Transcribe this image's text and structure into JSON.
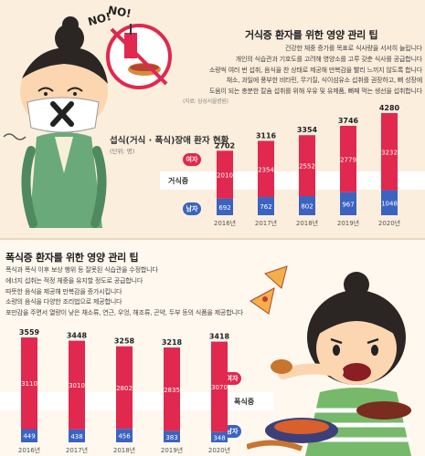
{
  "top": {
    "title": "거식증 환자를 위한 영양 관리 팁",
    "tips": [
      "건강한 체중 증가를 목표로 식사량을 서서히 늘립니다",
      "개인의 식습관과 기호도를 고려해 영양소를 고루 갖춘 식사를 공급합니다",
      "소량씩 여러 번 섭취, 음식을 찬 상태로 제공해 만복감을 빨리 느끼지 않도록 합니다",
      "채소, 과일에 풍부한 비타민, 무기질, 식이섬유소 섭취를 권장하고, 뼈 성장에",
      "도움이 되는 충분한 칼슘 섭취를 위해 우유 및 유제품, 뼈째 먹는 생선을 섭취합니다"
    ],
    "source": "(자료: 삼성서울병원)",
    "no_bubble_1": "NO!",
    "no_bubble_2": "NO!"
  },
  "bottom": {
    "title": "폭식증 환자를 위한 영양 관리 팁",
    "tips": [
      "폭식과 폭식 이후 보상 행위 등 잘못된 식습관을 수정합니다",
      "에너지 섭취는 적정 체중을 유지할 정도로 공급합니다",
      "따뜻한 음식을 제공해 만복감을 증가시킵니다",
      "소량의 음식을 다양한 조리법으로 제공합니다",
      "포만감을 주면서 열량이 낮은 채소류, 연근, 우엉, 해조류, 곤약, 두부 등의 식품을 제공합니다"
    ]
  },
  "chart_data": [
    {
      "type": "bar",
      "title": "섭식(거식 · 폭식)장애 환자 현황",
      "unit": "(단위: 명)",
      "categories": [
        "2016년",
        "2017년",
        "2018년",
        "2019년",
        "2020년"
      ],
      "totals": [
        2702,
        3116,
        3354,
        3746,
        4280
      ],
      "series": [
        {
          "name": "여자",
          "values": [
            2010,
            2354,
            2552,
            2779,
            3232
          ],
          "color": "#e1284e"
        },
        {
          "name": "남자",
          "values": [
            692,
            762,
            802,
            967,
            1048
          ],
          "color": "#3b63c1"
        }
      ],
      "band_label": "거식증"
    },
    {
      "type": "bar",
      "categories": [
        "2016년",
        "2017년",
        "2018년",
        "2019년",
        "2020년"
      ],
      "totals": [
        3559,
        3448,
        3258,
        3218,
        3418
      ],
      "series": [
        {
          "name": "여자",
          "values": [
            3110,
            3010,
            2802,
            2835,
            3070
          ],
          "color": "#e1284e"
        },
        {
          "name": "남자",
          "values": [
            449,
            438,
            456,
            383,
            348
          ],
          "color": "#3b63c1"
        }
      ],
      "band_label": "폭식증"
    }
  ]
}
